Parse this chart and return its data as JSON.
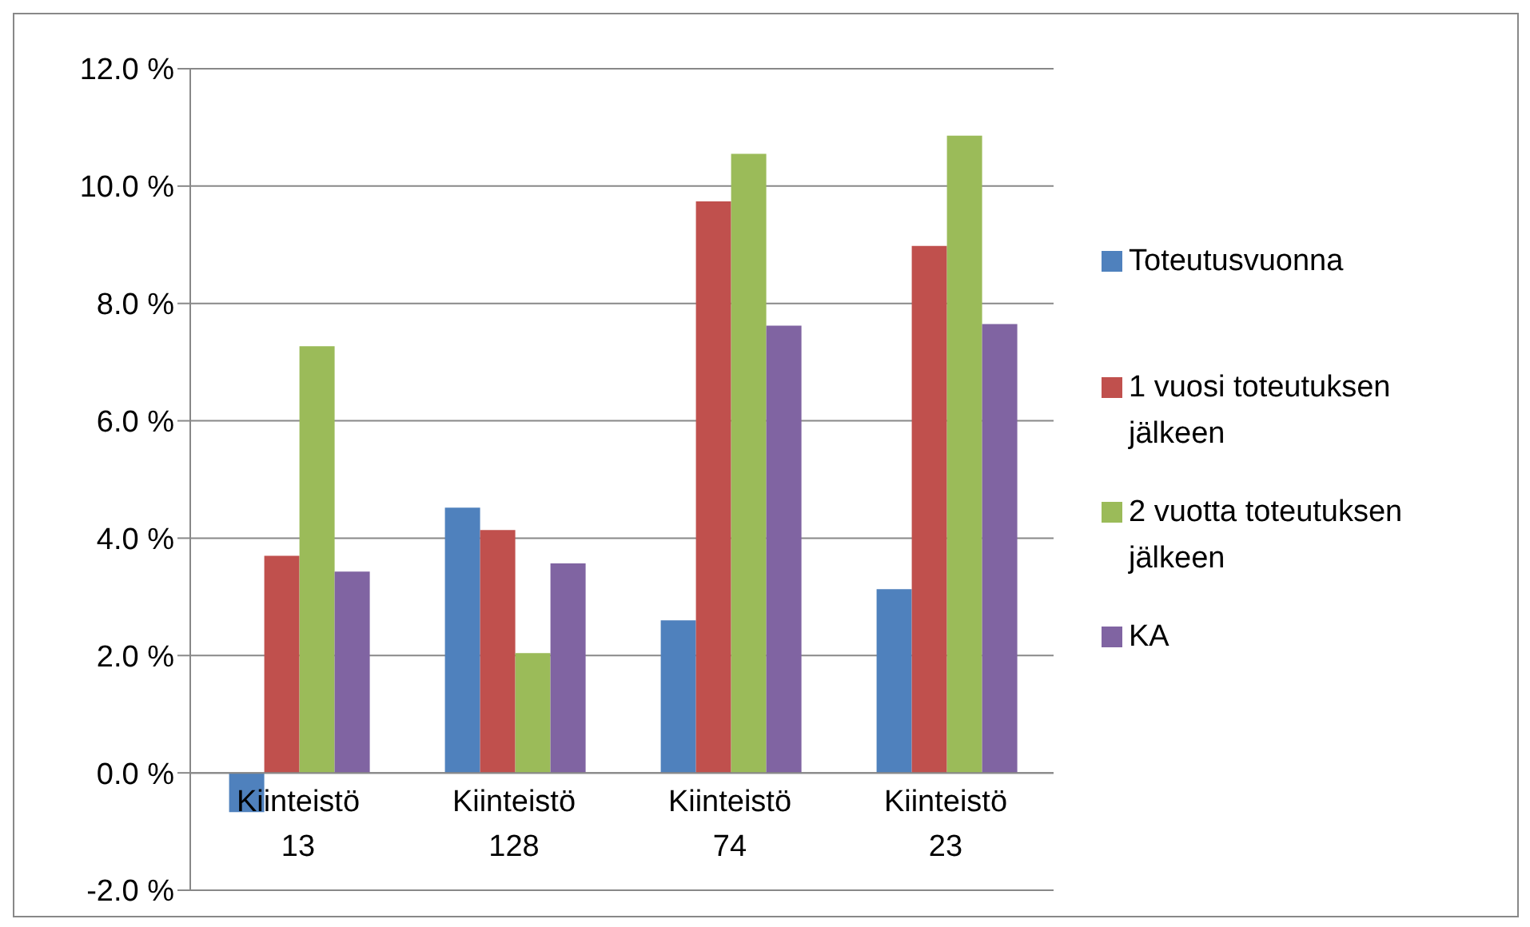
{
  "chart_data": {
    "type": "bar",
    "categories": [
      "Kiinteistö 13",
      "Kiinteistö 128",
      "Kiinteistö 74",
      "Kiinteistö 23"
    ],
    "series": [
      {
        "name": "Toteutusvuonna",
        "color": "#4f81bd",
        "values": [
          -0.67,
          4.52,
          2.6,
          3.13
        ]
      },
      {
        "name": "1 vuosi toteutuksen jälkeen",
        "color": "#c0504d",
        "values": [
          3.7,
          4.14,
          9.74,
          8.98
        ]
      },
      {
        "name": "2 vuotta toteutuksen jälkeen",
        "color": "#9bbb59",
        "values": [
          7.27,
          2.04,
          10.55,
          10.86
        ]
      },
      {
        "name": "KA",
        "color": "#8064a2",
        "values": [
          3.43,
          3.57,
          7.62,
          7.65
        ]
      }
    ],
    "ylim": [
      -2,
      12
    ],
    "yticks": [
      {
        "value": -2,
        "label": "-2.0 %"
      },
      {
        "value": 0,
        "label": "0.0 %"
      },
      {
        "value": 2,
        "label": "2.0 %"
      },
      {
        "value": 4,
        "label": "4.0 %"
      },
      {
        "value": 6,
        "label": "6.0 %"
      },
      {
        "value": 8,
        "label": "8.0 %"
      },
      {
        "value": 10,
        "label": "10.0 %"
      },
      {
        "value": 12,
        "label": "12.0 %"
      }
    ],
    "grid": "y",
    "legend": "right"
  }
}
